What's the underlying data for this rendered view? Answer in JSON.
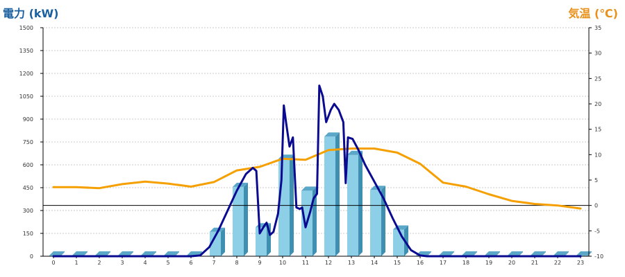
{
  "colors": {
    "power_line": "#0a0a90",
    "temp_line": "#f5a000",
    "bar_front": "#8ecfe8",
    "bar_side": "#3f8fb0",
    "bar_top": "#5aa7c8",
    "left_title": "#1a5fa0",
    "right_title": "#e8901a",
    "grid": "#c8c8c8"
  },
  "chart_data": {
    "type": "combo",
    "left_axis_title": "電力 (kW)",
    "right_axis_title": "気温 (℃)",
    "categories": [
      "0",
      "1",
      "2",
      "3",
      "4",
      "5",
      "6",
      "7",
      "8",
      "9",
      "10",
      "11",
      "12",
      "13",
      "14",
      "15",
      "16",
      "17",
      "18",
      "19",
      "20",
      "21",
      "22",
      "23"
    ],
    "ylim_left": [
      0,
      1500
    ],
    "yticks_left": [
      0,
      150,
      300,
      450,
      600,
      750,
      900,
      1050,
      1200,
      1350,
      1500
    ],
    "ylim_right": [
      -10,
      35
    ],
    "yticks_right": [
      -10,
      -5,
      0,
      5,
      10,
      15,
      20,
      25,
      30,
      35
    ],
    "grid": true,
    "bars": {
      "axis": "left",
      "values": [
        5,
        5,
        5,
        5,
        5,
        5,
        5,
        160,
        455,
        190,
        640,
        430,
        785,
        665,
        435,
        175,
        5,
        5,
        5,
        5,
        5,
        5,
        5,
        5
      ]
    },
    "power_line": {
      "axis": "left",
      "points": [
        [
          0,
          0
        ],
        [
          6,
          0
        ],
        [
          6.4,
          5
        ],
        [
          6.8,
          60
        ],
        [
          7.2,
          170
        ],
        [
          7.6,
          300
        ],
        [
          8,
          430
        ],
        [
          8.4,
          540
        ],
        [
          8.7,
          580
        ],
        [
          8.85,
          560
        ],
        [
          9,
          150
        ],
        [
          9.2,
          200
        ],
        [
          9.3,
          220
        ],
        [
          9.45,
          140
        ],
        [
          9.6,
          160
        ],
        [
          9.8,
          280
        ],
        [
          9.95,
          500
        ],
        [
          10.05,
          990
        ],
        [
          10.15,
          880
        ],
        [
          10.3,
          720
        ],
        [
          10.45,
          780
        ],
        [
          10.6,
          320
        ],
        [
          10.75,
          310
        ],
        [
          10.85,
          320
        ],
        [
          11,
          190
        ],
        [
          11.2,
          290
        ],
        [
          11.35,
          380
        ],
        [
          11.5,
          410
        ],
        [
          11.6,
          1120
        ],
        [
          11.75,
          1050
        ],
        [
          11.9,
          880
        ],
        [
          12.1,
          960
        ],
        [
          12.25,
          1000
        ],
        [
          12.45,
          960
        ],
        [
          12.65,
          880
        ],
        [
          12.75,
          480
        ],
        [
          12.85,
          780
        ],
        [
          13.05,
          770
        ],
        [
          13.3,
          700
        ],
        [
          13.6,
          600
        ],
        [
          14,
          490
        ],
        [
          14.4,
          380
        ],
        [
          14.8,
          250
        ],
        [
          15.2,
          130
        ],
        [
          15.6,
          40
        ],
        [
          16,
          5
        ],
        [
          16.3,
          0
        ],
        [
          23,
          0
        ]
      ]
    },
    "temp_line": {
      "axis": "right",
      "points": [
        [
          0,
          3.6
        ],
        [
          1,
          3.6
        ],
        [
          2,
          3.4
        ],
        [
          3,
          4.2
        ],
        [
          4,
          4.7
        ],
        [
          5,
          4.3
        ],
        [
          6,
          3.7
        ],
        [
          7,
          4.6
        ],
        [
          8,
          6.9
        ],
        [
          9,
          7.6
        ],
        [
          10,
          9.2
        ],
        [
          11,
          9.0
        ],
        [
          12,
          10.9
        ],
        [
          13,
          11.2
        ],
        [
          14,
          11.2
        ],
        [
          15,
          10.4
        ],
        [
          16,
          8.2
        ],
        [
          17,
          4.5
        ],
        [
          18,
          3.7
        ],
        [
          19,
          2.2
        ],
        [
          20,
          0.9
        ],
        [
          21,
          0.3
        ],
        [
          22,
          0.0
        ],
        [
          23,
          -0.6
        ]
      ]
    }
  }
}
